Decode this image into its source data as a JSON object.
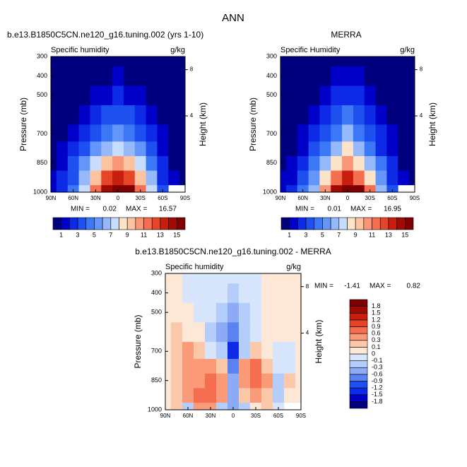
{
  "title": "ANN",
  "chart_data": [
    {
      "type": "contour",
      "title": "b.e13.B1850C5CN.ne120_g16.tuning.002 (yrs 1-10)",
      "subtitle": "Specific humidity",
      "units": "g/kg",
      "ylabel": "Pressure (mb)",
      "y2label": "Height (km)",
      "x": [
        90,
        75,
        60,
        45,
        30,
        15,
        0,
        -15,
        -30,
        -45,
        -60,
        -75,
        -90
      ],
      "y": [
        1000,
        925,
        850,
        775,
        700,
        600,
        500,
        400,
        300
      ],
      "xlim": [
        90,
        -90
      ],
      "ylim": [
        1000,
        300
      ],
      "xticks": [
        {
          "value": 90,
          "label": "90N"
        },
        {
          "value": 60,
          "label": "60N"
        },
        {
          "value": 30,
          "label": "30N"
        },
        0,
        {
          "value": -30,
          "label": "30S"
        },
        {
          "value": -60,
          "label": "60S"
        },
        {
          "value": -90,
          "label": "90S"
        }
      ],
      "yticks": [
        300,
        400,
        500,
        700,
        850,
        1000
      ],
      "y2ticks": [
        4,
        8
      ],
      "z": [
        [
          1,
          2,
          4,
          7,
          11,
          14,
          16,
          15,
          11,
          7,
          3,
          null,
          null
        ],
        [
          1,
          2,
          3.5,
          6,
          9,
          12,
          13,
          12,
          9,
          6,
          2.5,
          1,
          0.5
        ],
        [
          0.8,
          1.5,
          3,
          5,
          7,
          9,
          10,
          9,
          7,
          4.5,
          2,
          0.8,
          0.4
        ],
        [
          0.6,
          1,
          2,
          3.5,
          5,
          6.5,
          7.5,
          6.5,
          5,
          3,
          1.5,
          0.6,
          0.3
        ],
        [
          0.4,
          0.8,
          1.5,
          2.5,
          3.5,
          4.5,
          5,
          4.5,
          3.5,
          2,
          1,
          0.4,
          0.2
        ],
        [
          0.3,
          0.5,
          0.9,
          1.5,
          2.2,
          3,
          3.5,
          3,
          2.2,
          1.2,
          0.6,
          0.3,
          0.1
        ],
        [
          0.2,
          0.3,
          0.5,
          0.8,
          1.2,
          1.8,
          2,
          1.8,
          1.2,
          0.7,
          0.4,
          0.2,
          0.1
        ],
        [
          0.1,
          0.15,
          0.25,
          0.4,
          0.6,
          0.9,
          1.1,
          0.9,
          0.6,
          0.3,
          0.2,
          0.1,
          0.05
        ],
        [
          0.05,
          0.05,
          0.1,
          0.15,
          0.25,
          0.35,
          0.4,
          0.35,
          0.25,
          0.15,
          0.1,
          0.05,
          0.03
        ]
      ],
      "levels": [
        1,
        2,
        3,
        4,
        5,
        6,
        7,
        8,
        9,
        10,
        11,
        12,
        13,
        14,
        15
      ],
      "colors": [
        "#00007f",
        "#0000c8",
        "#0d2be6",
        "#1e50f0",
        "#3c78f5",
        "#6496fa",
        "#96b9fc",
        "#c8dcfe",
        "#fde3c8",
        "#fcc3a0",
        "#fa9678",
        "#f56e50",
        "#e64628",
        "#c81e0f",
        "#a00a05",
        "#7f0000"
      ],
      "colorbar": "horizontal",
      "colorbar_ticks": [
        1,
        3,
        5,
        7,
        9,
        11,
        13,
        15
      ],
      "min_label": "MIN =",
      "min": 0.02,
      "max_label": "MAX =",
      "max": 16.57
    },
    {
      "type": "contour",
      "title": "MERRA",
      "subtitle": "Specific Humidity",
      "units": "g/kg",
      "ylabel": "Pressure (mb)",
      "y2label": "Height (km)",
      "x": [
        90,
        75,
        60,
        45,
        30,
        15,
        0,
        -15,
        -30,
        -45,
        -60,
        -75,
        -90
      ],
      "y": [
        1000,
        925,
        850,
        775,
        700,
        600,
        500,
        400,
        300
      ],
      "xlim": [
        90,
        -90
      ],
      "ylim": [
        1000,
        300
      ],
      "xticks": [
        {
          "value": 90,
          "label": "90N"
        },
        {
          "value": 60,
          "label": "60N"
        },
        {
          "value": 30,
          "label": "30N"
        },
        0,
        {
          "value": -30,
          "label": "30S"
        },
        {
          "value": -60,
          "label": "60S"
        },
        {
          "value": -90,
          "label": "90S"
        }
      ],
      "yticks": [
        300,
        400,
        500,
        700,
        850,
        1000
      ],
      "y2ticks": [
        4,
        8
      ],
      "z": [
        [
          1,
          2,
          4.3,
          6.7,
          10.6,
          14.3,
          16.6,
          15.3,
          11,
          6.9,
          3.1,
          null,
          null
        ],
        [
          1,
          1.9,
          3.1,
          5.4,
          8.3,
          11.7,
          13.4,
          11.8,
          8.5,
          5.9,
          2.7,
          1,
          0.5
        ],
        [
          0.8,
          1.4,
          2.7,
          4.5,
          6.4,
          8.6,
          10.6,
          8.7,
          6.4,
          4.2,
          2.3,
          0.7,
          0.4
        ],
        [
          0.6,
          0.8,
          1.7,
          3.2,
          4.7,
          6.4,
          8.4,
          6.1,
          4.4,
          2.8,
          1.6,
          0.7,
          0.3
        ],
        [
          0.4,
          0.6,
          1.2,
          2.3,
          3.6,
          4.8,
          6.4,
          4.7,
          3.3,
          2,
          1.1,
          0.5,
          0.2
        ],
        [
          0.3,
          0.4,
          0.85,
          1.45,
          2.4,
          3.4,
          4.4,
          3.3,
          2.3,
          1.2,
          0.6,
          0.3,
          0.1
        ],
        [
          0.2,
          0.25,
          0.45,
          0.9,
          1.3,
          2.1,
          2.6,
          2.1,
          1.3,
          0.7,
          0.4,
          0.2,
          0.1
        ],
        [
          0.1,
          0.1,
          0.3,
          0.45,
          0.7,
          1,
          1.4,
          1,
          0.65,
          0.3,
          0.2,
          0.1,
          0.05
        ],
        [
          0.05,
          0.05,
          0.15,
          0.2,
          0.3,
          0.4,
          0.5,
          0.4,
          0.3,
          0.15,
          0.1,
          0.05,
          0.03
        ]
      ],
      "levels": [
        1,
        2,
        3,
        4,
        5,
        6,
        7,
        8,
        9,
        10,
        11,
        12,
        13,
        14,
        15
      ],
      "colors": [
        "#00007f",
        "#0000c8",
        "#0d2be6",
        "#1e50f0",
        "#3c78f5",
        "#6496fa",
        "#96b9fc",
        "#c8dcfe",
        "#fde3c8",
        "#fcc3a0",
        "#fa9678",
        "#f56e50",
        "#e64628",
        "#c81e0f",
        "#a00a05",
        "#7f0000"
      ],
      "colorbar": "horizontal",
      "colorbar_ticks": [
        1,
        3,
        5,
        7,
        9,
        11,
        13,
        15
      ],
      "min_label": "MIN =",
      "min": 0.01,
      "max_label": "MAX =",
      "max": 16.95
    },
    {
      "type": "contour",
      "title": "b.e13.B1850C5CN.ne120_g16.tuning.002 - MERRA",
      "subtitle": "Specific humidity",
      "units": "g/kg",
      "ylabel": "Pressure (mb)",
      "y2label": "Height (km)",
      "x": [
        90,
        75,
        60,
        45,
        30,
        15,
        0,
        -15,
        -30,
        -45,
        -60,
        -75,
        -90
      ],
      "y": [
        1000,
        925,
        850,
        775,
        700,
        600,
        500,
        400,
        300
      ],
      "xlim": [
        90,
        -90
      ],
      "ylim": [
        1000,
        300
      ],
      "xticks": [
        {
          "value": 90,
          "label": "90N"
        },
        {
          "value": 60,
          "label": "60N"
        },
        {
          "value": 30,
          "label": "30N"
        },
        0,
        {
          "value": -30,
          "label": "30S"
        },
        {
          "value": -60,
          "label": "60S"
        },
        {
          "value": -90,
          "label": "90S"
        }
      ],
      "yticks": [
        300,
        400,
        500,
        700,
        850,
        1000
      ],
      "y2ticks": [
        4,
        8
      ],
      "z": [
        [
          0.05,
          0.1,
          -0.3,
          0.3,
          0.4,
          -0.3,
          -0.6,
          -0.3,
          0.05,
          0.1,
          -0.1,
          null,
          null
        ],
        [
          0.05,
          0.1,
          0.4,
          0.6,
          0.7,
          0.3,
          -0.4,
          0.2,
          0.5,
          0.1,
          -0.2,
          0.05,
          0.05
        ],
        [
          0.05,
          0.1,
          0.3,
          0.5,
          0.6,
          0.4,
          -0.6,
          0.3,
          0.82,
          0.3,
          -0.3,
          0.1,
          0.05
        ],
        [
          0.05,
          0.2,
          0.3,
          0.3,
          0.3,
          0.1,
          -0.9,
          0.4,
          0.6,
          0.2,
          -0.1,
          -0.1,
          0.05
        ],
        [
          0.05,
          0.2,
          0.3,
          0.2,
          -0.1,
          -0.3,
          -1.41,
          -0.2,
          0.2,
          0.05,
          -0.1,
          -0.1,
          0.05
        ],
        [
          0.05,
          0.1,
          0.05,
          0.05,
          -0.2,
          -0.4,
          -0.9,
          -0.3,
          -0.1,
          0.05,
          0.05,
          0.05,
          0.05
        ],
        [
          0.05,
          0.05,
          0.05,
          -0.1,
          -0.1,
          -0.3,
          -0.6,
          -0.3,
          -0.1,
          0.05,
          0.05,
          0.05,
          0.05
        ],
        [
          0.05,
          0.05,
          -0.05,
          -0.05,
          -0.1,
          -0.1,
          -0.3,
          -0.1,
          -0.05,
          0.05,
          0.05,
          0.05,
          0.05
        ],
        [
          0.05,
          0.05,
          -0.05,
          -0.05,
          -0.05,
          -0.05,
          -0.1,
          -0.05,
          -0.05,
          0.05,
          0.05,
          0.05,
          0.05
        ]
      ],
      "levels": [
        -1.8,
        -1.5,
        -1.2,
        -0.9,
        -0.6,
        -0.3,
        -0.1,
        0,
        0.1,
        0.3,
        0.6,
        0.9,
        1.2,
        1.5,
        1.8
      ],
      "colors": [
        "#00007f",
        "#0000c8",
        "#0d2be6",
        "#1e50f0",
        "#5a82f0",
        "#8caaf5",
        "#b4cdfa",
        "#d7e6fc",
        "#fde8d7",
        "#fcc8aa",
        "#fa9a78",
        "#f56e50",
        "#e64628",
        "#c81e0f",
        "#a00a05",
        "#7f0000"
      ],
      "colorbar": "vertical",
      "min_label": "MIN =",
      "min": -1.41,
      "max_label": "MAX =",
      "max": 0.82
    }
  ]
}
